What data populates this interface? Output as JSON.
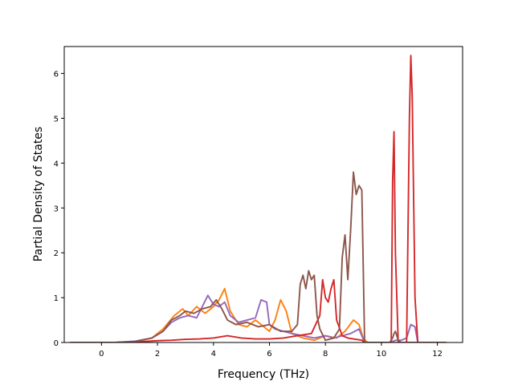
{
  "chart_data": {
    "type": "line",
    "title": "",
    "xlabel": "Frequency (THz)",
    "ylabel": "Partial Density of States",
    "xlim": [
      -1.33,
      12.9
    ],
    "ylim": [
      0,
      6.6
    ],
    "xticks": [
      0,
      2,
      4,
      6,
      8,
      10,
      12
    ],
    "yticks": [
      0,
      1,
      2,
      3,
      4,
      5,
      6
    ],
    "grid": false,
    "legend": "none",
    "series": [
      {
        "color": "#ff7f0e",
        "x": [
          -1.1,
          0.5,
          1.2,
          1.8,
          2.2,
          2.6,
          2.9,
          3.1,
          3.4,
          3.7,
          4.0,
          4.2,
          4.4,
          4.6,
          4.9,
          5.2,
          5.5,
          5.8,
          6.0,
          6.2,
          6.4,
          6.6,
          6.8,
          7.2,
          7.6,
          8.0,
          8.4,
          8.7,
          9.0,
          9.2,
          9.35,
          9.5,
          10.3,
          10.5,
          10.6,
          11.0,
          11.3,
          12.3
        ],
        "y": [
          0,
          0,
          0.02,
          0.1,
          0.3,
          0.6,
          0.75,
          0.6,
          0.8,
          0.65,
          0.8,
          0.95,
          1.2,
          0.7,
          0.4,
          0.35,
          0.5,
          0.35,
          0.25,
          0.5,
          0.95,
          0.7,
          0.2,
          0.1,
          0.05,
          0.15,
          0.1,
          0.25,
          0.5,
          0.4,
          0.1,
          0,
          0,
          0,
          0,
          0,
          0,
          0
        ]
      },
      {
        "color": "#9467bd",
        "x": [
          -1.1,
          0.5,
          1.2,
          1.8,
          2.2,
          2.5,
          2.8,
          3.1,
          3.4,
          3.6,
          3.8,
          4.0,
          4.2,
          4.4,
          4.6,
          4.9,
          5.2,
          5.5,
          5.7,
          5.9,
          6.0,
          6.2,
          6.5,
          6.8,
          7.2,
          7.6,
          8.0,
          8.3,
          8.6,
          8.9,
          9.2,
          9.4,
          10.3,
          10.5,
          10.7,
          10.9,
          11.05,
          11.2,
          11.3,
          12.3
        ],
        "y": [
          0,
          0,
          0.03,
          0.1,
          0.25,
          0.45,
          0.55,
          0.6,
          0.55,
          0.8,
          1.05,
          0.85,
          0.8,
          0.9,
          0.6,
          0.45,
          0.5,
          0.55,
          0.95,
          0.9,
          0.4,
          0.3,
          0.25,
          0.2,
          0.15,
          0.1,
          0.15,
          0.1,
          0.15,
          0.2,
          0.3,
          0,
          0,
          0.05,
          0.05,
          0.1,
          0.4,
          0.35,
          0,
          0
        ]
      },
      {
        "color": "#d62728",
        "x": [
          -1.1,
          0.5,
          1.5,
          2.0,
          2.5,
          3.0,
          3.5,
          4.0,
          4.5,
          5.0,
          5.5,
          6.0,
          6.5,
          7.0,
          7.5,
          7.8,
          7.9,
          8.0,
          8.1,
          8.2,
          8.3,
          8.4,
          8.6,
          8.8,
          9.0,
          9.3,
          9.4,
          10.2,
          10.35,
          10.4,
          10.45,
          10.5,
          10.6,
          10.7,
          10.9,
          11.0,
          11.05,
          11.1,
          11.2,
          11.3,
          12.3
        ],
        "y": [
          0,
          0,
          0.02,
          0.04,
          0.05,
          0.07,
          0.08,
          0.1,
          0.15,
          0.1,
          0.08,
          0.08,
          0.1,
          0.15,
          0.2,
          0.6,
          1.4,
          1.0,
          0.9,
          1.2,
          1.4,
          0.5,
          0.15,
          0.1,
          0.08,
          0.05,
          0,
          0,
          0,
          3.6,
          4.7,
          2.0,
          0,
          0,
          0,
          5.0,
          6.4,
          5.5,
          1.0,
          0,
          0
        ]
      },
      {
        "color": "#8c564b",
        "x": [
          -1.1,
          0.5,
          1.2,
          1.8,
          2.2,
          2.5,
          2.8,
          3.0,
          3.3,
          3.6,
          3.9,
          4.1,
          4.3,
          4.5,
          4.8,
          5.2,
          5.6,
          6.0,
          6.4,
          6.8,
          7.0,
          7.1,
          7.2,
          7.3,
          7.4,
          7.5,
          7.6,
          7.7,
          7.8,
          8.0,
          8.3,
          8.5,
          8.6,
          8.7,
          8.8,
          8.9,
          9.0,
          9.1,
          9.2,
          9.3,
          9.4,
          10.3,
          10.4,
          10.45,
          10.5,
          10.6,
          10.7,
          11.0,
          11.3,
          12.3
        ],
        "y": [
          0,
          0,
          0.02,
          0.1,
          0.25,
          0.5,
          0.6,
          0.7,
          0.65,
          0.75,
          0.8,
          0.95,
          0.75,
          0.5,
          0.4,
          0.45,
          0.35,
          0.4,
          0.25,
          0.25,
          0.4,
          1.3,
          1.5,
          1.2,
          1.6,
          1.4,
          1.5,
          0.6,
          0.3,
          0.05,
          0.1,
          0.3,
          1.9,
          2.4,
          1.4,
          2.5,
          3.8,
          3.3,
          3.5,
          3.4,
          0,
          0,
          0.1,
          0.2,
          0.25,
          0.05,
          0,
          0,
          0,
          0
        ]
      }
    ]
  }
}
